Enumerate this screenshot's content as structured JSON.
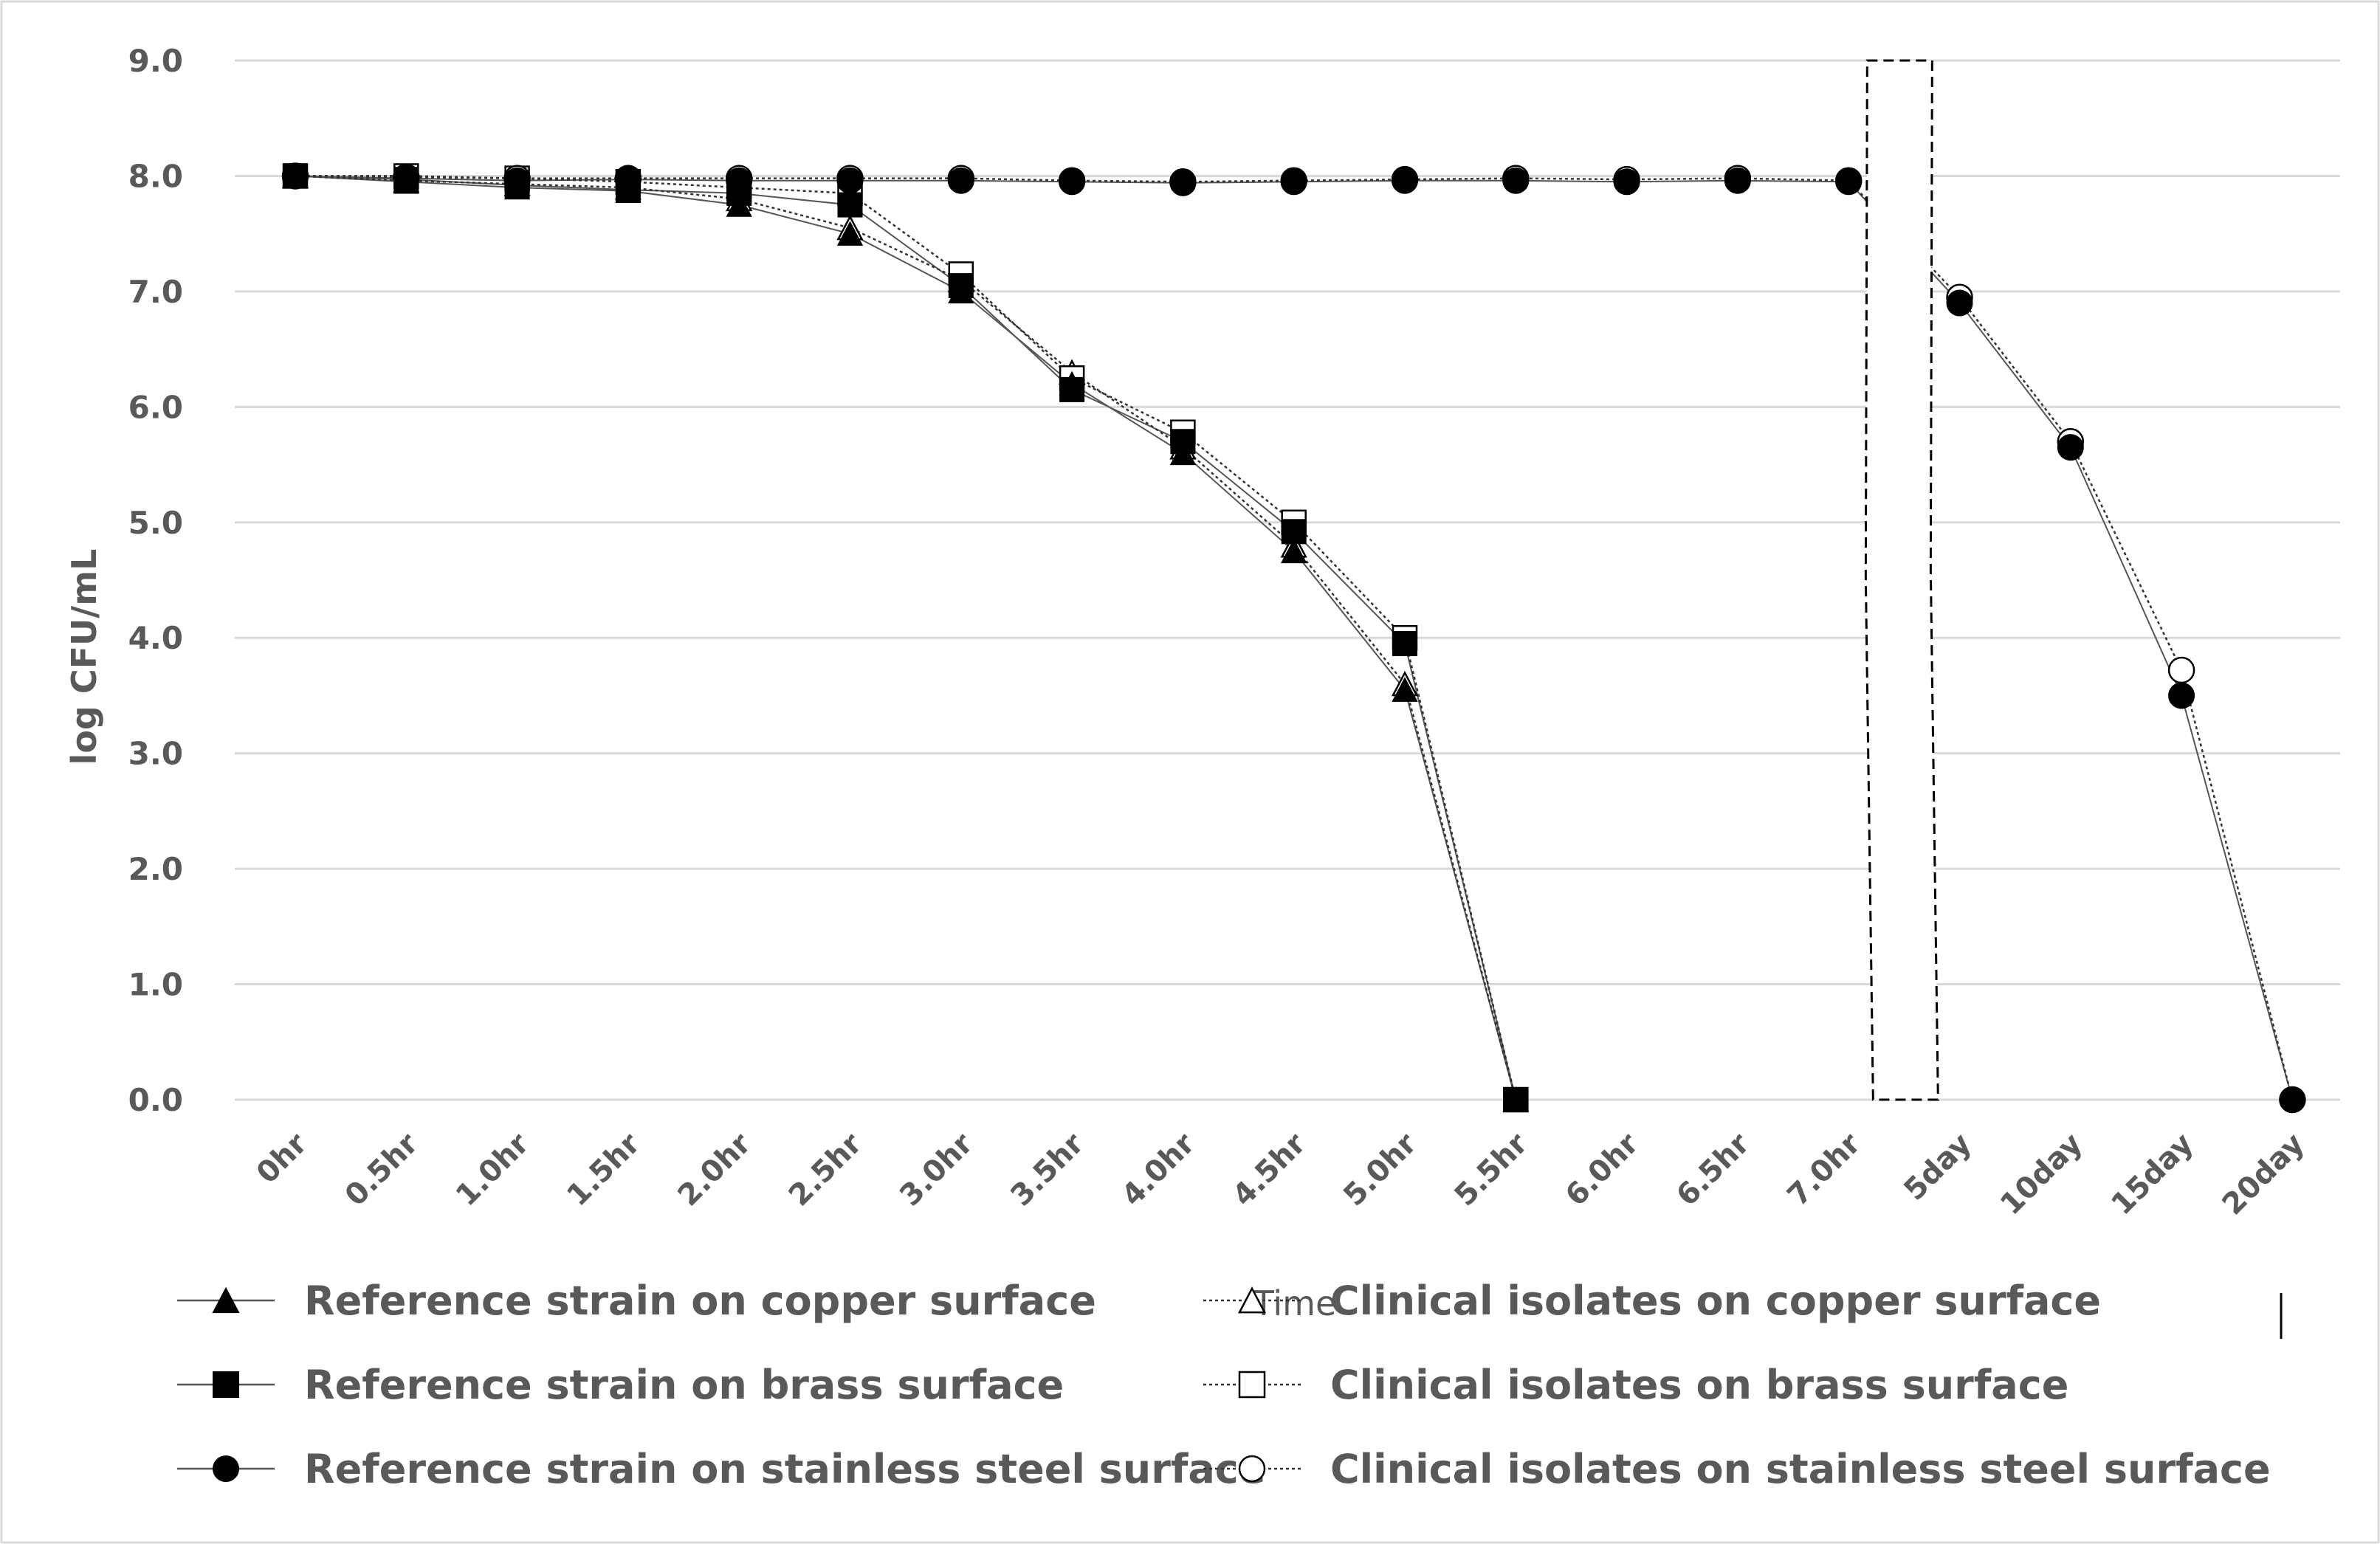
{
  "chart_data": {
    "type": "line",
    "title": "",
    "xlabel": "Time",
    "ylabel": "log CFU/mL",
    "ylim": [
      0,
      9
    ],
    "yticks": [
      "0.0",
      "1.0",
      "2.0",
      "3.0",
      "4.0",
      "5.0",
      "6.0",
      "7.0",
      "8.0",
      "9.0"
    ],
    "categories": [
      "0hr",
      "0.5hr",
      "1.0hr",
      "1.5hr",
      "2.0hr",
      "2.5hr",
      "3.0hr",
      "3.5hr",
      "4.0hr",
      "4.5hr",
      "5.0hr",
      "5.5hr",
      "6.0hr",
      "6.5hr",
      "7.0hr",
      "5day",
      "10day",
      "15day",
      "20day"
    ],
    "axis_break": "between 7.0hr and 5day",
    "grid": true,
    "legend_position": "bottom",
    "series": [
      {
        "name": "Reference strain on copper surface",
        "marker": "triangle",
        "filled": true,
        "line": "solid",
        "values": [
          8.0,
          7.95,
          7.9,
          7.87,
          7.75,
          7.5,
          7.0,
          6.2,
          5.6,
          4.75,
          3.55,
          0.0,
          null,
          null,
          null,
          null,
          null,
          null,
          null
        ]
      },
      {
        "name": "Reference strain on brass surface",
        "marker": "square",
        "filled": true,
        "line": "solid",
        "values": [
          8.0,
          7.97,
          7.92,
          7.88,
          7.85,
          7.75,
          7.05,
          6.15,
          5.7,
          4.92,
          3.95,
          0.0,
          null,
          null,
          null,
          null,
          null,
          null,
          null
        ]
      },
      {
        "name": "Reference strain on stainless steel surface",
        "marker": "circle",
        "filled": true,
        "line": "solid",
        "values": [
          8.0,
          7.98,
          7.96,
          7.97,
          7.96,
          7.96,
          7.96,
          7.95,
          7.94,
          7.95,
          7.96,
          7.96,
          7.95,
          7.96,
          7.95,
          6.9,
          5.65,
          3.5,
          0.0
        ]
      },
      {
        "name": "Clinical isolates on copper surface",
        "marker": "triangle",
        "filled": false,
        "line": "dotted",
        "values": [
          8.0,
          7.96,
          7.93,
          7.9,
          7.8,
          7.55,
          7.1,
          6.3,
          5.65,
          4.8,
          3.6,
          0.0,
          null,
          null,
          null,
          null,
          null,
          null,
          null
        ]
      },
      {
        "name": "Clinical isolates on brass surface",
        "marker": "square",
        "filled": false,
        "line": "dotted",
        "values": [
          8.0,
          8.0,
          7.98,
          7.95,
          7.9,
          7.85,
          7.15,
          6.25,
          5.78,
          5.0,
          4.0,
          0.0,
          null,
          null,
          null,
          null,
          null,
          null,
          null
        ]
      },
      {
        "name": "Clinical isolates on stainless steel surface",
        "marker": "circle",
        "filled": false,
        "line": "dotted",
        "values": [
          8.0,
          7.99,
          7.98,
          7.98,
          7.98,
          7.98,
          7.98,
          7.96,
          7.95,
          7.96,
          7.97,
          7.98,
          7.97,
          7.98,
          7.96,
          6.95,
          5.7,
          3.72,
          0.0
        ]
      }
    ]
  }
}
